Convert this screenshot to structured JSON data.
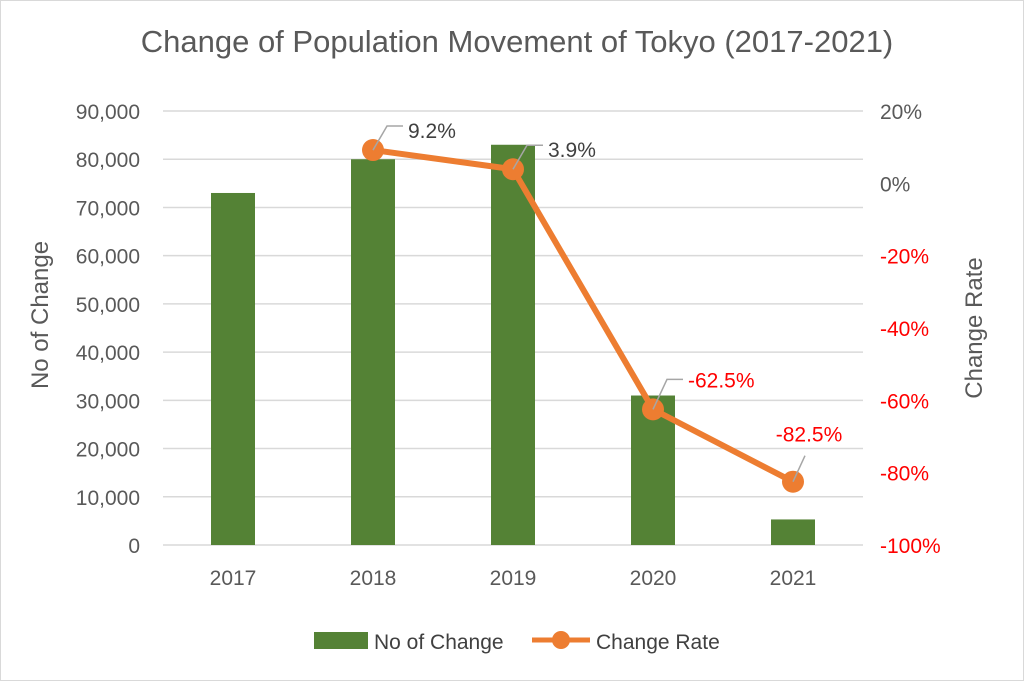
{
  "chart_data": {
    "type": "bar+line",
    "title": "Change of Population Movement of Tokyo (2017-2021)",
    "categories": [
      "2017",
      "2018",
      "2019",
      "2020",
      "2021"
    ],
    "ylabel": "No of Change",
    "y2label": "Change Rate",
    "ylim": [
      0,
      90000
    ],
    "y2lim": [
      -100,
      20
    ],
    "yticks": [
      "0",
      "10,000",
      "20,000",
      "30,000",
      "40,000",
      "50,000",
      "60,000",
      "70,000",
      "80,000",
      "90,000"
    ],
    "y2ticks": [
      "-100%",
      "-80%",
      "-60%",
      "-40%",
      "-20%",
      "0%",
      "20%"
    ],
    "grid": true,
    "legend_position": "bottom",
    "series": [
      {
        "name": "No of Change",
        "type": "bar",
        "axis": "left",
        "color": "#548235",
        "values": [
          73000,
          80000,
          83000,
          31000,
          5300
        ]
      },
      {
        "name": "Change Rate",
        "type": "line",
        "axis": "right",
        "color": "#ed7d31",
        "values": [
          null,
          9.2,
          3.9,
          -62.5,
          -82.5
        ],
        "labels": [
          null,
          "9.2%",
          "3.9%",
          "-62.5%",
          "-82.5%"
        ]
      }
    ],
    "negative_label_color": "#ff0000"
  }
}
